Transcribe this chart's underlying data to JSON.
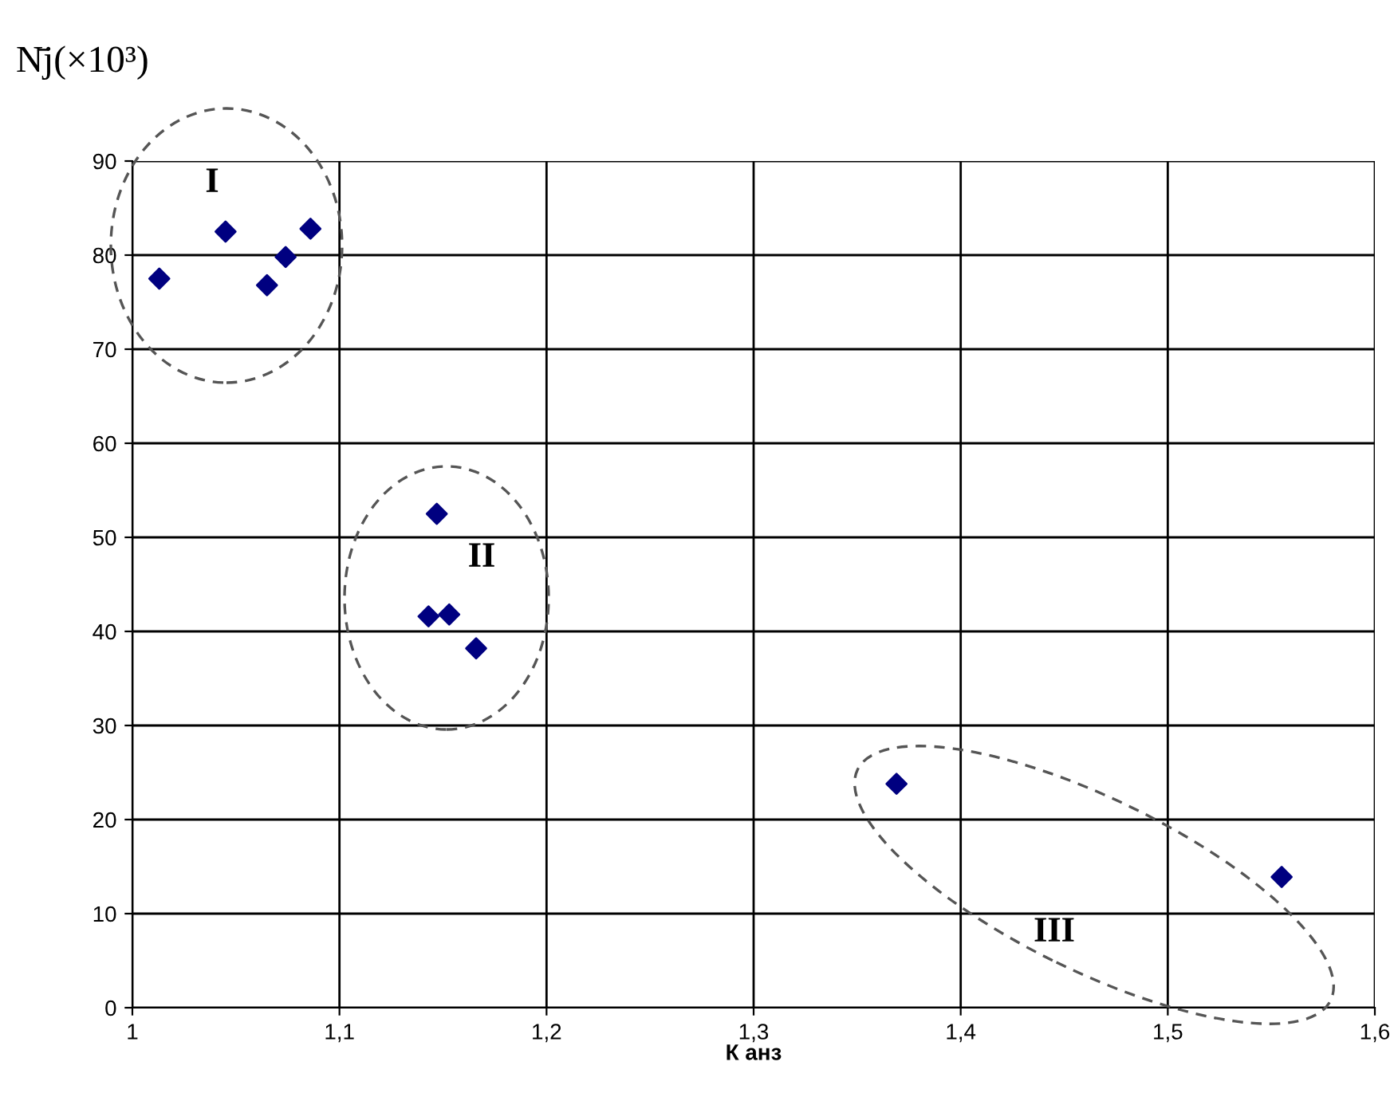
{
  "chart_data": {
    "type": "scatter",
    "xlabel": "К анз",
    "ylabel": "N̄j(×10³)",
    "x": [
      1.013,
      1.045,
      1.065,
      1.074,
      1.086,
      1.147,
      1.143,
      1.153,
      1.166,
      1.369,
      1.555
    ],
    "series": [
      {
        "color": "#000080",
        "values": [
          77.5,
          82.5,
          76.8,
          79.8,
          82.8,
          52.5,
          41.6,
          41.8,
          38.2,
          23.8,
          13.9
        ]
      }
    ],
    "marker": "diamond",
    "grid": true,
    "legend": false,
    "xlim": [
      1,
      1.6
    ],
    "xticks": [
      1,
      {
        "value": 1.1,
        "label": "1,1"
      },
      {
        "value": 1.2,
        "label": "1,2"
      },
      {
        "value": 1.3,
        "label": "1,3"
      },
      {
        "value": 1.4,
        "label": "1,4"
      },
      {
        "value": 1.5,
        "label": "1,5"
      },
      {
        "value": 1.6,
        "label": "1,6"
      }
    ],
    "ylim": [
      0,
      90
    ],
    "yticks": [
      0,
      10,
      20,
      30,
      40,
      50,
      60,
      70,
      80,
      90
    ],
    "annotations": [
      "I",
      "II",
      "III"
    ]
  }
}
